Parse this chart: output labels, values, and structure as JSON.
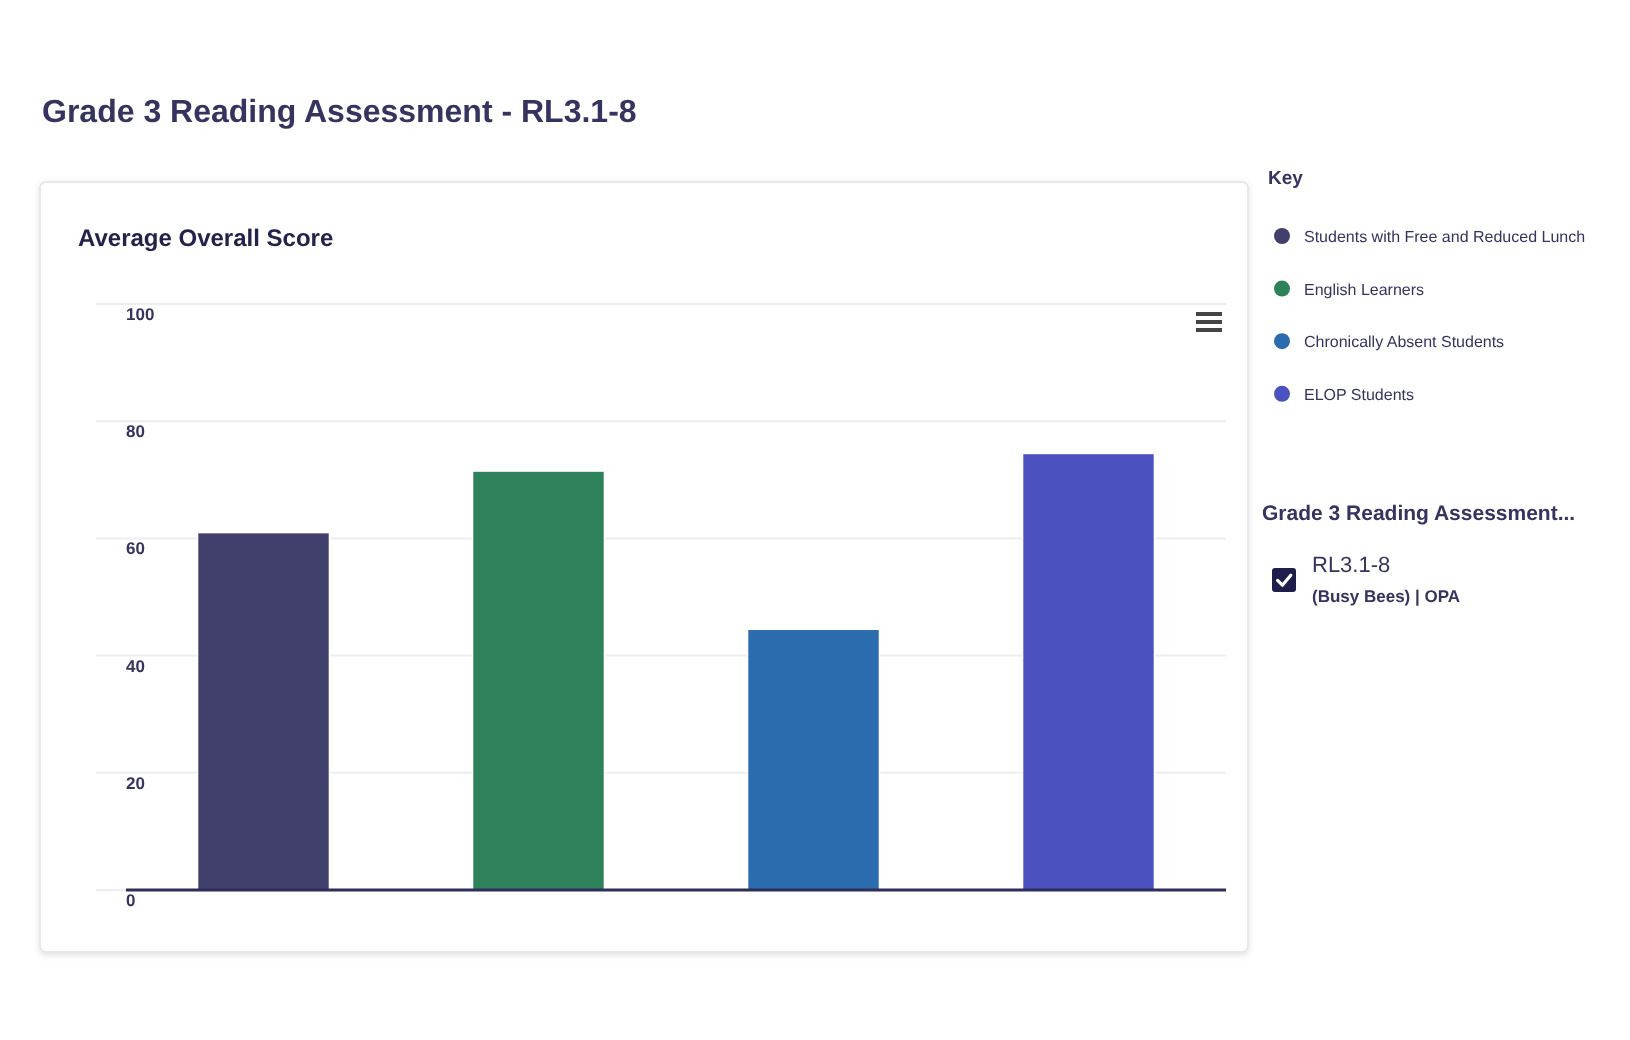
{
  "chart_data": {
    "type": "bar",
    "title": "Grade 3 Reading Assessment - RL3.1-8",
    "subtitle": "Average Overall Score",
    "legend_title": "Key",
    "categories": [
      null
    ],
    "series": [
      {
        "name": "Students with Free and Reduced Lunch",
        "color": "#413f6b",
        "values": [
          61
        ]
      },
      {
        "name": "English Learners",
        "color": "#2e8259",
        "values": [
          71.5
        ]
      },
      {
        "name": "Chronically Absent Students",
        "color": "#2a6cad",
        "values": [
          44.5
        ]
      },
      {
        "name": "ELOP Students",
        "color": "#4b51bf",
        "values": [
          74.5
        ]
      }
    ],
    "ylim": [
      0,
      100
    ],
    "yticks": [
      0,
      20,
      40,
      60,
      80,
      100
    ],
    "grid": "y",
    "legend": "right",
    "tick_labels": "y",
    "annotations": [
      "Grade 3 Reading Assessment...",
      "RL3.1-8",
      "(Busy Bees) | OPA"
    ]
  }
}
